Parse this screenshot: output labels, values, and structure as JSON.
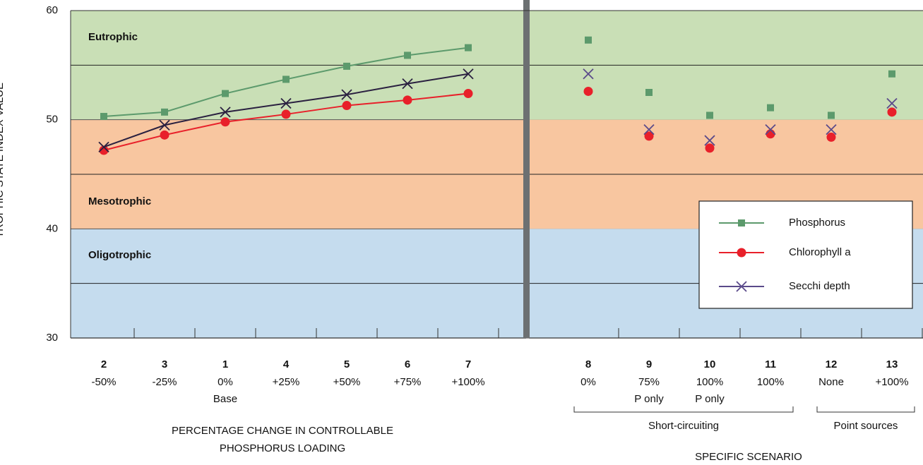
{
  "chart_data": [
    {
      "type": "line",
      "ylabel": "TROPHIC STATE INDEX VALUE",
      "xlabel": [
        "PERCENTAGE CHANGE IN CONTROLLABLE",
        "PHOSPHORUS LOADING"
      ],
      "ylim": [
        30,
        60
      ],
      "yticks": [
        30,
        40,
        50,
        60
      ],
      "minor_yticks": [
        35,
        45,
        55
      ],
      "bands": [
        {
          "label": "Eutrophic",
          "range": [
            50,
            60
          ],
          "color": "#c9dfb6"
        },
        {
          "label": "Mesotrophic",
          "range": [
            40,
            50
          ],
          "color": "#f8c6a0"
        },
        {
          "label": "Oligotrophic",
          "range": [
            30,
            40
          ],
          "color": "#c5dcee"
        }
      ],
      "categories": [
        "2",
        "3",
        "1",
        "4",
        "5",
        "6",
        "7"
      ],
      "category_labels": [
        "-50%",
        "-25%",
        "0%",
        "+25%",
        "+50%",
        "+75%",
        "+100%"
      ],
      "category_notes": [
        null,
        null,
        "Base",
        null,
        null,
        null,
        null
      ],
      "series": [
        {
          "name": "Phosphorus",
          "color": "#5c9a6c",
          "marker": "square",
          "values": [
            50.3,
            50.7,
            52.4,
            53.7,
            54.9,
            55.9,
            56.6
          ]
        },
        {
          "name": "Chlorophyll a",
          "color": "#e8202a",
          "marker": "circle",
          "values": [
            47.2,
            48.6,
            49.8,
            50.5,
            51.3,
            51.8,
            52.4
          ]
        },
        {
          "name": "Secchi depth",
          "color": "#2a2040",
          "marker": "x",
          "values": [
            47.5,
            49.5,
            50.7,
            51.5,
            52.3,
            53.3,
            54.2
          ]
        }
      ]
    },
    {
      "type": "scatter",
      "xlabel": [
        "SPECIFIC SCENARIO"
      ],
      "ylim": [
        30,
        60
      ],
      "minor_yticks": [
        35,
        45,
        55
      ],
      "bands": [
        {
          "range": [
            50,
            60
          ],
          "color": "#c9dfb6"
        },
        {
          "range": [
            40,
            50
          ],
          "color": "#f8c6a0"
        },
        {
          "range": [
            30,
            40
          ],
          "color": "#c5dcee"
        }
      ],
      "categories": [
        "8",
        "9",
        "10",
        "11",
        "12",
        "13"
      ],
      "category_labels": [
        "0%",
        "75%",
        "100%",
        "100%",
        "None",
        "+100%"
      ],
      "category_notes": [
        null,
        "P only",
        "P only",
        null,
        null,
        null
      ],
      "groups": [
        {
          "label": "Short-circuiting",
          "from": 0,
          "to": 3
        },
        {
          "label": "Point sources",
          "from": 4,
          "to": 5
        }
      ],
      "legend": "lower right",
      "series": [
        {
          "name": "Phosphorus",
          "color": "#5c9a6c",
          "marker": "square",
          "values": [
            57.3,
            52.5,
            50.4,
            51.1,
            50.4,
            54.2
          ]
        },
        {
          "name": "Chlorophyll a",
          "color": "#e8202a",
          "marker": "circle",
          "values": [
            52.6,
            48.5,
            47.4,
            48.7,
            48.4,
            50.7
          ]
        },
        {
          "name": "Secchi depth",
          "color": "#5a4a8a",
          "marker": "x",
          "values": [
            54.2,
            49.1,
            48.1,
            49.1,
            49.1,
            51.5
          ]
        }
      ]
    }
  ]
}
